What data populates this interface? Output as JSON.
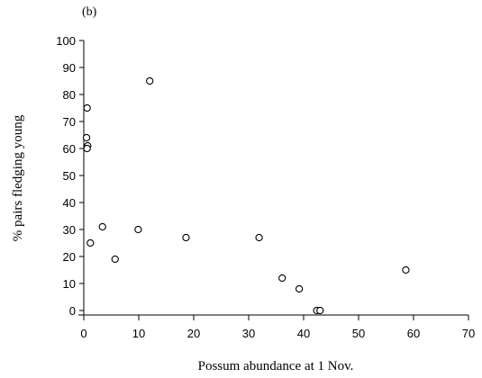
{
  "chart_data": {
    "type": "scatter",
    "panel_label": "(b)",
    "title": "",
    "xlabel": "Possum abundance at 1 Nov.",
    "ylabel": "% pairs fledging young",
    "xlim": [
      0,
      70
    ],
    "ylim": [
      0,
      100
    ],
    "xticks": [
      0,
      10,
      20,
      30,
      40,
      50,
      60,
      70
    ],
    "yticks": [
      0,
      10,
      20,
      30,
      40,
      50,
      60,
      70,
      80,
      90,
      100
    ],
    "grid": false,
    "marker": "open-circle",
    "points": [
      {
        "x": 0.6,
        "y": 75
      },
      {
        "x": 0.5,
        "y": 64
      },
      {
        "x": 0.7,
        "y": 61
      },
      {
        "x": 0.6,
        "y": 60
      },
      {
        "x": 1.2,
        "y": 25
      },
      {
        "x": 3.4,
        "y": 31
      },
      {
        "x": 5.7,
        "y": 19
      },
      {
        "x": 9.9,
        "y": 30
      },
      {
        "x": 12.0,
        "y": 85
      },
      {
        "x": 18.6,
        "y": 27
      },
      {
        "x": 31.9,
        "y": 27
      },
      {
        "x": 36.1,
        "y": 12
      },
      {
        "x": 39.2,
        "y": 8
      },
      {
        "x": 42.4,
        "y": 0
      },
      {
        "x": 43.0,
        "y": 0
      },
      {
        "x": 58.6,
        "y": 15
      }
    ]
  }
}
